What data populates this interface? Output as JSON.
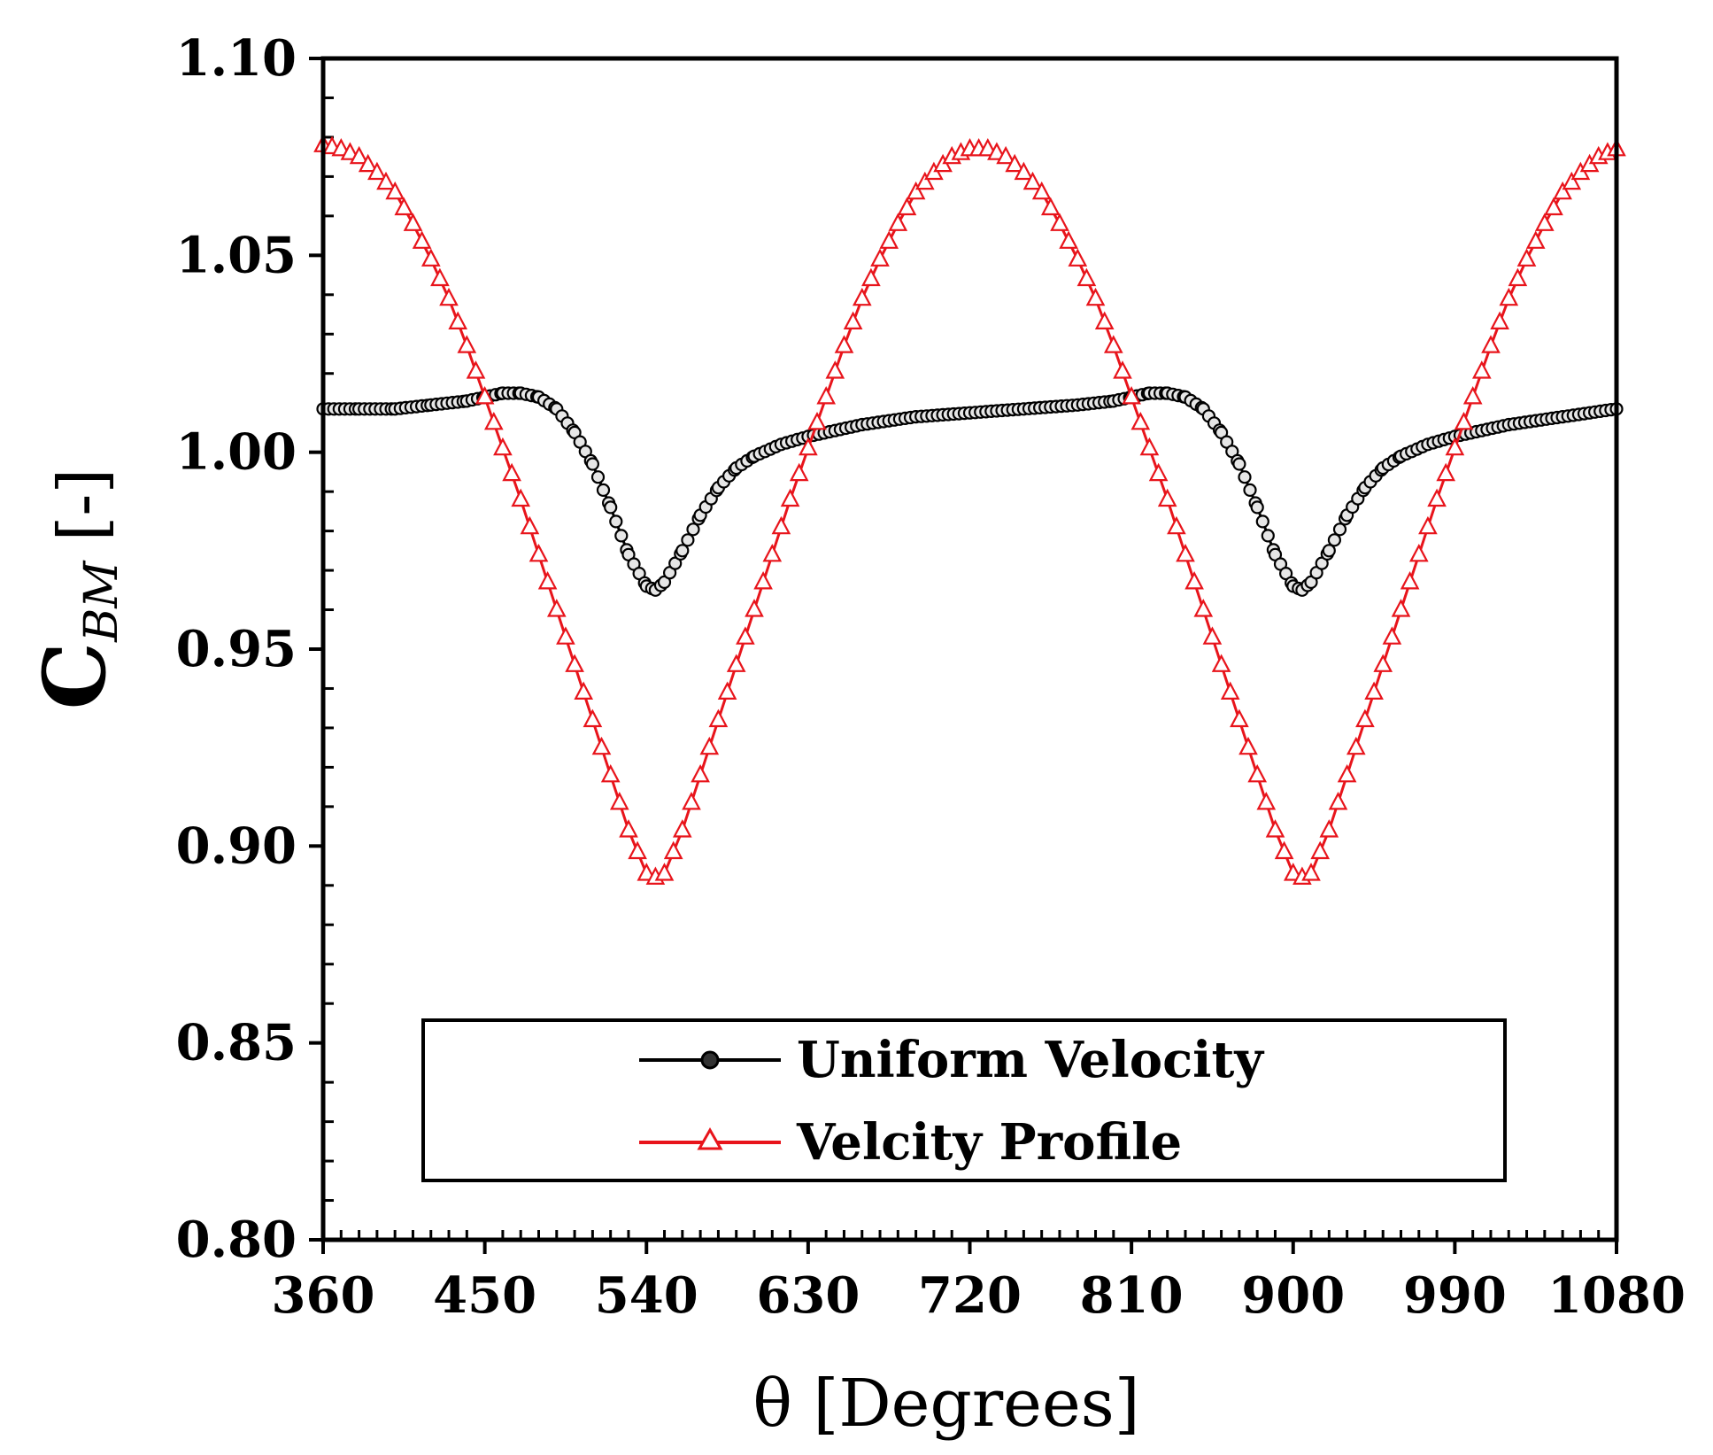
{
  "chart_data": {
    "type": "line",
    "title": "",
    "xlabel": "θ  [Degrees]",
    "ylabel": {
      "base": "C",
      "subscript": "BM",
      "suffix": "[-]"
    },
    "xlim": [
      360,
      1080
    ],
    "ylim": [
      0.8,
      1.1
    ],
    "xticks": [
      "360",
      "450",
      "540",
      "630",
      "720",
      "810",
      "900",
      "990",
      "1080"
    ],
    "yticks": [
      "0.80",
      "0.85",
      "0.90",
      "0.95",
      "1.00",
      "1.05",
      "1.10"
    ],
    "legend_position": "bottom-center",
    "series": [
      {
        "name": "Uniform Velocity",
        "color": "#000000",
        "marker": "circle",
        "x": [
          360,
          380,
          400,
          420,
          440,
          450,
          460,
          470,
          480,
          490,
          500,
          510,
          520,
          530,
          540,
          545,
          550,
          560,
          570,
          580,
          590,
          600,
          615,
          630,
          660,
          690,
          720,
          750,
          780,
          800,
          810,
          820,
          830,
          840,
          850,
          860,
          870,
          880,
          890,
          900,
          905,
          910,
          920,
          930,
          940,
          950,
          960,
          975,
          990,
          1020,
          1050,
          1080
        ],
        "y": [
          1.011,
          1.011,
          1.011,
          1.012,
          1.013,
          1.014,
          1.015,
          1.015,
          1.014,
          1.011,
          1.005,
          0.997,
          0.986,
          0.974,
          0.966,
          0.965,
          0.967,
          0.975,
          0.984,
          0.991,
          0.996,
          0.999,
          1.002,
          1.004,
          1.007,
          1.009,
          1.01,
          1.011,
          1.012,
          1.013,
          1.014,
          1.015,
          1.015,
          1.014,
          1.011,
          1.005,
          0.997,
          0.986,
          0.974,
          0.966,
          0.965,
          0.967,
          0.975,
          0.984,
          0.991,
          0.996,
          0.999,
          1.002,
          1.004,
          1.007,
          1.009,
          1.011
        ]
      },
      {
        "name": "Velcity Profile",
        "color": "#e8141b",
        "marker": "triangle",
        "x": [
          360,
          370,
          380,
          390,
          400,
          410,
          420,
          430,
          440,
          450,
          460,
          470,
          480,
          490,
          500,
          510,
          520,
          530,
          540,
          545,
          550,
          560,
          570,
          580,
          590,
          600,
          610,
          620,
          630,
          640,
          650,
          660,
          670,
          680,
          690,
          700,
          710,
          720,
          730,
          740,
          750,
          760,
          770,
          780,
          790,
          800,
          810,
          820,
          830,
          840,
          850,
          860,
          870,
          880,
          890,
          900,
          905,
          910,
          920,
          930,
          940,
          950,
          960,
          970,
          980,
          990,
          1000,
          1010,
          1020,
          1030,
          1040,
          1050,
          1060,
          1070,
          1080
        ],
        "y": [
          1.078,
          1.077,
          1.075,
          1.071,
          1.066,
          1.058,
          1.049,
          1.039,
          1.027,
          1.014,
          1.001,
          0.988,
          0.974,
          0.96,
          0.946,
          0.932,
          0.918,
          0.904,
          0.893,
          0.892,
          0.893,
          0.904,
          0.918,
          0.932,
          0.946,
          0.96,
          0.974,
          0.988,
          1.001,
          1.014,
          1.027,
          1.039,
          1.049,
          1.058,
          1.066,
          1.071,
          1.075,
          1.077,
          1.077,
          1.075,
          1.071,
          1.066,
          1.058,
          1.049,
          1.039,
          1.027,
          1.014,
          1.001,
          0.988,
          0.974,
          0.96,
          0.946,
          0.932,
          0.918,
          0.904,
          0.893,
          0.892,
          0.893,
          0.904,
          0.918,
          0.932,
          0.946,
          0.96,
          0.974,
          0.988,
          1.001,
          1.014,
          1.027,
          1.039,
          1.049,
          1.058,
          1.066,
          1.071,
          1.075,
          1.077
        ]
      }
    ]
  }
}
